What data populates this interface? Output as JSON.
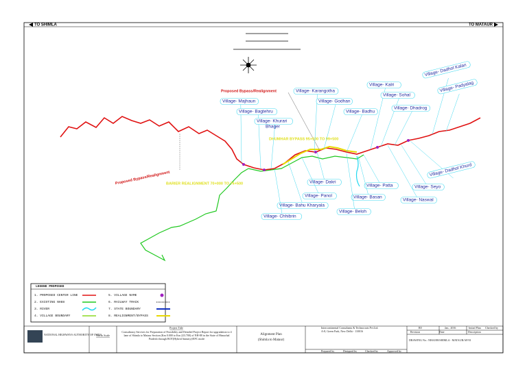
{
  "directions": {
    "left": "TO SHIMLA",
    "right": "TO MATAUR"
  },
  "annotations": {
    "bypass_top": "Proposed Bypass/Realignment",
    "bypass_left": "Proposed Bypass/Realignment",
    "realignment_1": "DHUMHAR BYPASS 95+500 TO 99+500",
    "realignment_2": "BARIER REALIGNMENT 70+000 TO 76+500"
  },
  "villages": [
    "Village- Majhaun",
    "Village- Bagtehru",
    "Village- Khurari",
    "Bhager",
    "Village- Karangotha",
    "Village- Godhan",
    "Village- Badhu",
    "Village- Kalri",
    "Village- Sohal",
    "Village- Dhadrog",
    "Village- Dadhol Kalan",
    "Village- Padyalag",
    "Village- Dadhol Khurd",
    "Village- Seyo",
    "Village- Naswal",
    "Village- Patta",
    "Village- Basan",
    "Village- Beloh",
    "Village- Dakri",
    "Village- Panol",
    "Village- Bahu Kharyala",
    "Village- Chhibrin"
  ],
  "legend": {
    "title": "LEGEND PROPOSED",
    "items": [
      "1. PROPOSED CENTER LINE",
      "2. EXISTING NH88",
      "3. RIVER",
      "4. VILLAGE BOUNDARY",
      "5. VILLAGE NAME",
      "6. RAILWAY TRACK",
      "7. STATE BOUNDARY",
      "8. REALIGNMENT/BYPASS"
    ]
  },
  "title_block": {
    "client": "NATIONAL HIGHWAYS AUTHORITY OF INDIA",
    "scale": "Not to Scale",
    "project_title_label": "Project Title",
    "project_title": "Consultancy Services for Preparation of Feasibility and Detailed Project Report for upgradation to 4 lane of Shimla to Mataur Section (Km 0.000 to Km 223.700) of NH-88 in the State of Himachal Pradesh through BOT(Hybrid Annuity)/EPC mode",
    "drawing_title": "Alignment Plan",
    "drawing_subtitle": "(Shimla to Mataur)",
    "consultant": "Intercontinental Consultants & Technocrats Pvt.Ltd.",
    "consultant_address": "A-8, Green Park, New Delhi - 110016",
    "signatures": [
      "Prepared by",
      "Designed by",
      "Checked by",
      "Approved by"
    ],
    "revision": {
      "rev": "R0",
      "date": "Jan., 2016",
      "description": "Initial Plan",
      "checked": "Checked by"
    },
    "revision_headers": [
      "Revision",
      "Date",
      "Description"
    ],
    "drawing_no": "DRAWING No.: NHAI/88/SHIMLA - MATAUR/AP/01"
  }
}
